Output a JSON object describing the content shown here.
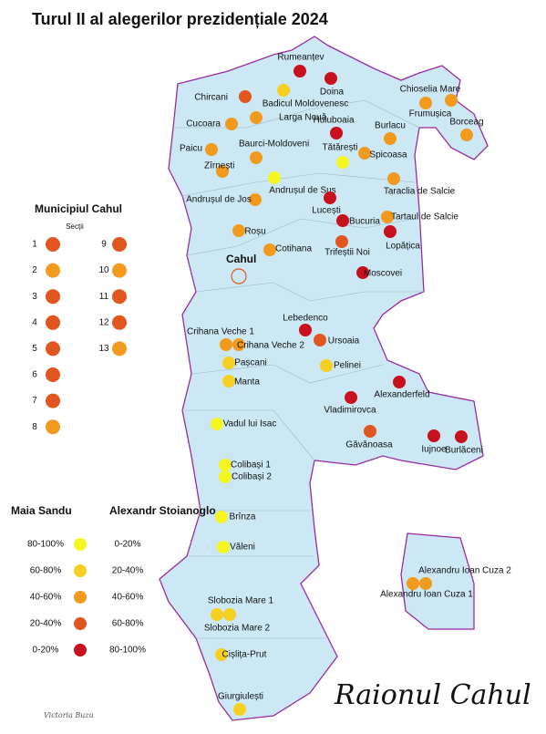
{
  "title": "Turul II al alegerilor prezidențiale 2024",
  "district_label": "Raionul Cahul",
  "signature": "Victoria Buzu",
  "city": {
    "label": "Cahul",
    "legend_title": "Municipiul Cahul",
    "legend_subtitle": "Secții",
    "sections": [
      {
        "label": "1",
        "color": "#e0561e"
      },
      {
        "label": "2",
        "color": "#f29a1e"
      },
      {
        "label": "3",
        "color": "#e0561e"
      },
      {
        "label": "4",
        "color": "#e0561e"
      },
      {
        "label": "5",
        "color": "#e0561e"
      },
      {
        "label": "6",
        "color": "#e0561e"
      },
      {
        "label": "7",
        "color": "#e0561e"
      },
      {
        "label": "8",
        "color": "#f29a1e"
      },
      {
        "label": "9",
        "color": "#e0561e"
      },
      {
        "label": "10",
        "color": "#f29a1e"
      },
      {
        "label": "11",
        "color": "#e0561e"
      },
      {
        "label": "12",
        "color": "#e0561e"
      },
      {
        "label": "13",
        "color": "#f29a1e"
      }
    ]
  },
  "legend": {
    "headers": [
      "Maia Sandu",
      "Alexandr Stoianoglo"
    ],
    "rows": [
      {
        "sandu": "80-100%",
        "stoianoglo": "0-20%",
        "color": "#f5f520"
      },
      {
        "sandu": "60-80%",
        "stoianoglo": "20-40%",
        "color": "#f5d020"
      },
      {
        "sandu": "40-60%",
        "stoianoglo": "40-60%",
        "color": "#f29a1e"
      },
      {
        "sandu": "20-40%",
        "stoianoglo": "60-80%",
        "color": "#e0561e"
      },
      {
        "sandu": "0-20%",
        "stoianoglo": "80-100%",
        "color": "#c8101e"
      }
    ]
  },
  "places": [
    {
      "label": "Rumeanțev",
      "color": "#c8101e"
    },
    {
      "label": "Doina",
      "color": "#c8101e"
    },
    {
      "label": "Chircani",
      "color": "#e0561e"
    },
    {
      "label": "Badicul Moldovenesc",
      "color": "#f5d020"
    },
    {
      "label": "Chioselia Mare",
      "color": "#f29a1e"
    },
    {
      "label": "Frumușica",
      "color": "#f29a1e"
    },
    {
      "label": "Larga Nouă",
      "color": "#f29a1e"
    },
    {
      "label": "Cucoara",
      "color": "#f29a1e"
    },
    {
      "label": "Huluboaia",
      "color": "#c8101e"
    },
    {
      "label": "Burlacu",
      "color": "#f29a1e"
    },
    {
      "label": "Borceag",
      "color": "#f29a1e"
    },
    {
      "label": "Paicu",
      "color": "#f29a1e"
    },
    {
      "label": "Baurci-Moldoveni",
      "color": "#f29a1e"
    },
    {
      "label": "Tătărești",
      "color": "#f5f520"
    },
    {
      "label": "Spicoasa",
      "color": "#f29a1e"
    },
    {
      "label": "Zîrnești",
      "color": "#f29a1e"
    },
    {
      "label": "Andrușul de Sus",
      "color": "#f5f520"
    },
    {
      "label": "Taraclia de Salcie",
      "color": "#f29a1e"
    },
    {
      "label": "Andrușul de Jos",
      "color": "#f29a1e"
    },
    {
      "label": "Lucești",
      "color": "#c8101e"
    },
    {
      "label": "Bucuria",
      "color": "#c8101e"
    },
    {
      "label": "Tartaul de Salcie",
      "color": "#f29a1e"
    },
    {
      "label": "Roșu",
      "color": "#f29a1e"
    },
    {
      "label": "Lopățica",
      "color": "#c8101e"
    },
    {
      "label": "Trifeștii Noi",
      "color": "#e0561e"
    },
    {
      "label": "Cotihana",
      "color": "#f29a1e"
    },
    {
      "label": "Moscovei",
      "color": "#c8101e"
    },
    {
      "label": "Lebedenco",
      "color": "#c8101e"
    },
    {
      "label": "Crihana Veche 1",
      "color": "#f29a1e"
    },
    {
      "label": "Crihana Veche 2",
      "color": "#f29a1e"
    },
    {
      "label": "Ursoaia",
      "color": "#e0561e"
    },
    {
      "label": "Pașcani",
      "color": "#f5d020"
    },
    {
      "label": "Pelinei",
      "color": "#f5d020"
    },
    {
      "label": "Manta",
      "color": "#f5d020"
    },
    {
      "label": "Alexanderfeld",
      "color": "#c8101e"
    },
    {
      "label": "Vladimirovca",
      "color": "#c8101e"
    },
    {
      "label": "Vadul lui Isac",
      "color": "#f5f520"
    },
    {
      "label": "Găvănoasa",
      "color": "#e0561e"
    },
    {
      "label": "Iujnoe",
      "color": "#c8101e"
    },
    {
      "label": "Burlăceni",
      "color": "#c8101e"
    },
    {
      "label": "Colibași 1",
      "color": "#f5f520"
    },
    {
      "label": "Colibași 2",
      "color": "#f5f520"
    },
    {
      "label": "Brînza",
      "color": "#f5f520"
    },
    {
      "label": "Văleni",
      "color": "#f5f520"
    },
    {
      "label": "Alexandru Ioan Cuza 2",
      "color": "#f29a1e"
    },
    {
      "label": "Alexandru Ioan Cuza 1",
      "color": "#f29a1e"
    },
    {
      "label": "Slobozia Mare 1",
      "color": "#f5d020"
    },
    {
      "label": "Slobozia Mare 2",
      "color": "#f5d020"
    },
    {
      "label": "Cișlița-Prut",
      "color": "#f5d020"
    },
    {
      "label": "Giurgiulești",
      "color": "#f5d020"
    }
  ]
}
